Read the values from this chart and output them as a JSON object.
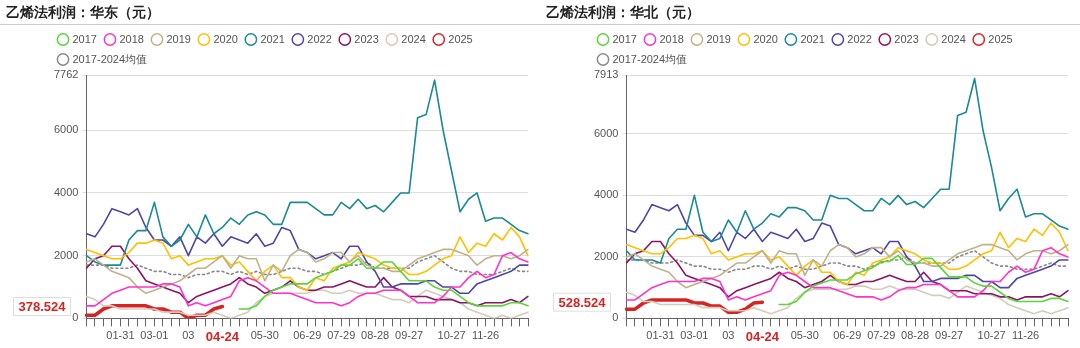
{
  "chart_data": [
    {
      "type": "line",
      "title": "乙烯法利润：华东（元）",
      "categories": [
        null,
        null,
        null,
        null,
        "01-31",
        null,
        null,
        null,
        "03-01",
        null,
        null,
        null,
        "03",
        null,
        null,
        null,
        "04-24",
        null,
        null,
        null,
        null,
        "05-30",
        null,
        null,
        null,
        null,
        "06-29",
        null,
        null,
        null,
        "07-29",
        null,
        null,
        null,
        "08-28",
        null,
        null,
        null,
        "09-27",
        null,
        null,
        null,
        null,
        "10-27",
        null,
        null,
        null,
        "11-26",
        null,
        null,
        null,
        null,
        null
      ],
      "ylim": [
        0,
        7762
      ],
      "yticks": [
        0,
        2000,
        4000,
        6000,
        7762
      ],
      "grid": "y",
      "legend": "top left",
      "marker": "none",
      "line_style": "solid",
      "annotations": [
        "378.524"
      ],
      "series": [
        {
          "name": "2017",
          "color": "#5ad53a",
          "values": [
            null,
            null,
            null,
            null,
            null,
            null,
            null,
            null,
            null,
            null,
            null,
            null,
            null,
            null,
            null,
            null,
            null,
            null,
            300,
            300,
            400,
            700,
            900,
            1000,
            1100,
            1100,
            1100,
            1300,
            1400,
            1500,
            1700,
            1700,
            1900,
            1600,
            1600,
            1800,
            1800,
            1500,
            1200,
            1200,
            1200,
            1000,
            900,
            900,
            700,
            500,
            400,
            400,
            400,
            400,
            500,
            500,
            400
          ]
        },
        {
          "name": "2018",
          "color": "#ff33cc",
          "values": [
            400,
            400,
            600,
            800,
            900,
            1000,
            1000,
            1000,
            1000,
            1100,
            1100,
            1000,
            400,
            500,
            400,
            500,
            600,
            700,
            1200,
            1300,
            1200,
            1000,
            800,
            800,
            800,
            700,
            600,
            500,
            500,
            500,
            400,
            500,
            700,
            800,
            800,
            900,
            900,
            900,
            700,
            500,
            500,
            500,
            700,
            1000,
            1000,
            1300,
            1500,
            1300,
            1400,
            2000,
            2100,
            1900,
            1800
          ]
        },
        {
          "name": "2019",
          "color": "#bfb28a",
          "values": [
            1800,
            1900,
            1700,
            1500,
            1400,
            1300,
            1000,
            800,
            900,
            1000,
            1100,
            1200,
            1400,
            1600,
            1600,
            1800,
            2000,
            1600,
            2000,
            1900,
            1900,
            1200,
            1700,
            1500,
            2000,
            2200,
            2100,
            1800,
            1900,
            2100,
            2100,
            1800,
            2000,
            1700,
            1600,
            1600,
            1500,
            1500,
            1700,
            1900,
            2000,
            2100,
            2200,
            2200,
            2100,
            2000,
            1700,
            1900,
            2000,
            2000,
            1900,
            2000,
            2200
          ]
        },
        {
          "name": "2020",
          "color": "#ffc000",
          "values": [
            2200,
            2100,
            2000,
            1900,
            1900,
            2100,
            2400,
            2400,
            2500,
            2400,
            1900,
            2000,
            1700,
            1800,
            1900,
            1900,
            2000,
            1700,
            1800,
            1500,
            1200,
            1500,
            1700,
            1300,
            1300,
            1000,
            900,
            1300,
            1200,
            1600,
            1700,
            1800,
            2100,
            2000,
            1900,
            1700,
            1600,
            1600,
            1400,
            1400,
            1500,
            1700,
            1900,
            2000,
            2600,
            2100,
            2400,
            2300,
            2700,
            2500,
            2900,
            2600,
            2000
          ]
        },
        {
          "name": "2021",
          "color": "#1a8a94",
          "values": [
            2000,
            1800,
            1700,
            1700,
            1700,
            2500,
            2800,
            2800,
            3700,
            2600,
            2300,
            2500,
            3000,
            2600,
            3300,
            2700,
            2900,
            3200,
            3000,
            3300,
            3400,
            3300,
            3000,
            3000,
            3700,
            3700,
            3700,
            3500,
            3300,
            3300,
            3700,
            3500,
            3800,
            3500,
            3600,
            3400,
            3700,
            4000,
            4000,
            6400,
            6500,
            7600,
            6000,
            4700,
            3400,
            3800,
            4000,
            3100,
            3200,
            3200,
            3000,
            2800,
            2700
          ]
        },
        {
          "name": "2022",
          "color": "#5046a8",
          "values": [
            2700,
            2600,
            3000,
            3500,
            3400,
            3300,
            3500,
            2900,
            2500,
            2500,
            2300,
            2600,
            2000,
            2600,
            2400,
            2700,
            2300,
            2600,
            2500,
            2400,
            2700,
            2300,
            2400,
            2900,
            2800,
            2200,
            2100,
            1900,
            2000,
            2100,
            1900,
            2300,
            2300,
            1800,
            1500,
            1000,
            1000,
            1100,
            1100,
            1100,
            1200,
            1200,
            1000,
            1000,
            800,
            800,
            1100,
            1200,
            1300,
            1400,
            1500,
            1700,
            1700
          ]
        },
        {
          "name": "2023",
          "color": "#8c1465",
          "values": [
            1600,
            1900,
            2000,
            2300,
            2300,
            1900,
            1600,
            1200,
            1100,
            1000,
            900,
            800,
            500,
            700,
            800,
            900,
            1000,
            1100,
            1300,
            1100,
            1000,
            800,
            900,
            1000,
            1200,
            1000,
            900,
            900,
            1000,
            1000,
            1100,
            1200,
            1100,
            1000,
            1000,
            1300,
            1000,
            900,
            700,
            700,
            700,
            600,
            600,
            600,
            500,
            500,
            400,
            500,
            500,
            500,
            600,
            500,
            700
          ]
        },
        {
          "name": "2024",
          "color": "#d5cbbb",
          "values": [
            700,
            600,
            400,
            400,
            300,
            300,
            300,
            300,
            300,
            200,
            200,
            200,
            100,
            100,
            100,
            200,
            100,
            0,
            100,
            200,
            500,
            700,
            800,
            800,
            800,
            800,
            800,
            900,
            900,
            800,
            800,
            900,
            800,
            800,
            800,
            700,
            600,
            600,
            500,
            700,
            900,
            800,
            700,
            600,
            500,
            300,
            200,
            100,
            0,
            100,
            0,
            100,
            200
          ]
        },
        {
          "name": "2025",
          "color": "#d62424",
          "values": [
            100,
            100,
            300,
            400,
            400,
            400,
            400,
            400,
            300,
            300,
            200,
            200,
            0,
            100,
            100,
            300,
            378.524,
            null,
            null,
            null,
            null,
            null,
            null,
            null,
            null,
            null,
            null,
            null,
            null,
            null,
            null,
            null,
            null,
            null,
            null,
            null,
            null,
            null,
            null,
            null,
            null,
            null,
            null,
            null,
            null,
            null,
            null,
            null,
            null,
            null,
            null,
            null,
            null
          ]
        },
        {
          "name": "2017-2024均值",
          "color": "#888888",
          "line_style": "dotted",
          "values": [
            1700,
            1700,
            1700,
            1600,
            1600,
            1600,
            1700,
            1600,
            1500,
            1500,
            1400,
            1400,
            1300,
            1400,
            1400,
            1500,
            1500,
            1400,
            1500,
            1400,
            1500,
            1400,
            1400,
            1500,
            1600,
            1600,
            1500,
            1500,
            1400,
            1500,
            1600,
            1700,
            1700,
            1800,
            1600,
            1600,
            1600,
            1600,
            1600,
            1800,
            1900,
            2000,
            1800,
            1600,
            1500,
            1500,
            1400,
            1400,
            1400,
            1500,
            1600,
            1500,
            1500
          ]
        }
      ]
    },
    {
      "type": "line",
      "title": "乙烯法利润：华北（元）",
      "categories": [
        null,
        null,
        null,
        null,
        "01-31",
        null,
        null,
        null,
        "03-01",
        null,
        null,
        null,
        "03",
        null,
        null,
        null,
        "04-24",
        null,
        null,
        null,
        null,
        "05-30",
        null,
        null,
        null,
        null,
        "06-29",
        null,
        null,
        null,
        "07-29",
        null,
        null,
        null,
        "08-28",
        null,
        null,
        null,
        "09-27",
        null,
        null,
        null,
        null,
        "10-27",
        null,
        null,
        null,
        "11-26",
        null,
        null,
        null,
        null,
        null
      ],
      "ylim": [
        0,
        7913
      ],
      "yticks": [
        0,
        2000,
        4000,
        6000,
        7913
      ],
      "grid": "y",
      "legend": "top left",
      "marker": "none",
      "line_style": "solid",
      "annotations": [
        "528.524"
      ],
      "series": [
        {
          "name": "2017",
          "color": "#5ad53a",
          "values": [
            null,
            null,
            null,
            null,
            null,
            null,
            null,
            null,
            null,
            null,
            null,
            null,
            null,
            null,
            null,
            null,
            null,
            null,
            450,
            450,
            550,
            850,
            1050,
            1150,
            1250,
            1250,
            1250,
            1450,
            1550,
            1650,
            1850,
            1850,
            2050,
            1750,
            1750,
            1950,
            1950,
            1650,
            1350,
            1350,
            1350,
            1150,
            1050,
            1050,
            850,
            650,
            550,
            550,
            550,
            550,
            650,
            650,
            550
          ]
        },
        {
          "name": "2018",
          "color": "#ff33cc",
          "values": [
            600,
            600,
            800,
            1000,
            1100,
            1200,
            1200,
            1200,
            1200,
            1300,
            1300,
            1200,
            600,
            700,
            600,
            700,
            800,
            900,
            1400,
            1500,
            1400,
            1200,
            1000,
            1000,
            1000,
            900,
            800,
            700,
            700,
            700,
            600,
            700,
            900,
            1000,
            1000,
            1100,
            1100,
            1100,
            900,
            700,
            700,
            700,
            900,
            1200,
            1200,
            1500,
            1700,
            1500,
            1600,
            2200,
            2300,
            2100,
            2000
          ]
        },
        {
          "name": "2019",
          "color": "#bfb28a",
          "values": [
            2000,
            2100,
            1900,
            1700,
            1600,
            1500,
            1200,
            1000,
            1100,
            1200,
            1300,
            1400,
            1600,
            1800,
            1800,
            2000,
            2200,
            1800,
            2200,
            2100,
            2100,
            1400,
            1900,
            1700,
            2200,
            2400,
            2300,
            2000,
            2100,
            2300,
            2300,
            2000,
            2200,
            1900,
            1800,
            1800,
            1700,
            1700,
            1900,
            2100,
            2200,
            2300,
            2400,
            2400,
            2300,
            2200,
            1900,
            2100,
            2200,
            2200,
            2100,
            2200,
            2400
          ]
        },
        {
          "name": "2020",
          "color": "#ffc000",
          "values": [
            2400,
            2300,
            2200,
            2100,
            2100,
            2300,
            2600,
            2600,
            2700,
            2600,
            2100,
            2200,
            1900,
            2000,
            2100,
            2100,
            2200,
            1900,
            2000,
            1700,
            1400,
            1700,
            1900,
            1500,
            1500,
            1200,
            1100,
            1500,
            1400,
            1800,
            1900,
            2000,
            2300,
            2200,
            2100,
            1900,
            1800,
            1800,
            1600,
            1600,
            1700,
            1900,
            2100,
            2200,
            2800,
            2300,
            2600,
            2500,
            2900,
            2700,
            3100,
            2800,
            2200
          ]
        },
        {
          "name": "2021",
          "color": "#1a8a94",
          "values": [
            2200,
            1900,
            1900,
            1900,
            1800,
            2600,
            2900,
            2900,
            4000,
            2800,
            2500,
            2600,
            3200,
            2800,
            3500,
            2900,
            3100,
            3400,
            3300,
            3600,
            3600,
            3500,
            3200,
            3200,
            4000,
            3900,
            3900,
            3700,
            3500,
            3500,
            3900,
            3700,
            4000,
            3700,
            3800,
            3600,
            3900,
            4200,
            4200,
            6600,
            6700,
            7800,
            6100,
            4900,
            3500,
            3900,
            4200,
            3300,
            3400,
            3400,
            3200,
            3000,
            2900
          ]
        },
        {
          "name": "2022",
          "color": "#5046a8",
          "values": [
            2900,
            2800,
            3200,
            3700,
            3600,
            3500,
            3700,
            3100,
            2700,
            2700,
            2500,
            2800,
            2200,
            2800,
            2600,
            2900,
            2500,
            2800,
            2700,
            2600,
            2900,
            2500,
            2600,
            3100,
            3000,
            2400,
            2300,
            2100,
            2200,
            2300,
            2100,
            2500,
            2500,
            2000,
            1700,
            1200,
            1200,
            1300,
            1300,
            1300,
            1400,
            1400,
            1200,
            1200,
            1000,
            1000,
            1300,
            1400,
            1500,
            1600,
            1700,
            1900,
            1900
          ]
        },
        {
          "name": "2023",
          "color": "#8c1465",
          "values": [
            1800,
            2100,
            2200,
            2500,
            2500,
            2100,
            1800,
            1400,
            1300,
            1200,
            1100,
            1000,
            700,
            900,
            1000,
            1100,
            1200,
            1300,
            1500,
            1300,
            1200,
            1000,
            1100,
            1200,
            1400,
            1200,
            1100,
            1100,
            1200,
            1200,
            1300,
            1400,
            1300,
            1200,
            1200,
            1500,
            1200,
            1100,
            900,
            900,
            900,
            800,
            800,
            800,
            700,
            700,
            600,
            700,
            700,
            700,
            800,
            700,
            900
          ]
        },
        {
          "name": "2024",
          "color": "#d5cbbb",
          "values": [
            850,
            750,
            550,
            550,
            450,
            450,
            450,
            450,
            450,
            350,
            350,
            350,
            250,
            250,
            250,
            350,
            250,
            150,
            250,
            350,
            650,
            850,
            950,
            950,
            950,
            950,
            950,
            1050,
            1050,
            950,
            950,
            1050,
            950,
            950,
            950,
            850,
            750,
            750,
            650,
            850,
            1050,
            950,
            850,
            750,
            650,
            450,
            350,
            250,
            150,
            250,
            150,
            250,
            350
          ]
        },
        {
          "name": "2025",
          "color": "#d62424",
          "values": [
            300,
            300,
            500,
            600,
            600,
            600,
            600,
            600,
            500,
            500,
            400,
            400,
            200,
            200,
            300,
            500,
            528.524,
            null,
            null,
            null,
            null,
            null,
            null,
            null,
            null,
            null,
            null,
            null,
            null,
            null,
            null,
            null,
            null,
            null,
            null,
            null,
            null,
            null,
            null,
            null,
            null,
            null,
            null,
            null,
            null,
            null,
            null,
            null,
            null,
            null,
            null,
            null,
            null
          ]
        },
        {
          "name": "2017-2024均值",
          "color": "#888888",
          "line_style": "dotted",
          "values": [
            1900,
            1900,
            1900,
            1800,
            1800,
            1800,
            1900,
            1800,
            1700,
            1700,
            1600,
            1600,
            1500,
            1600,
            1600,
            1700,
            1700,
            1600,
            1700,
            1600,
            1700,
            1600,
            1600,
            1700,
            1800,
            1800,
            1700,
            1700,
            1600,
            1700,
            1800,
            1900,
            1900,
            2000,
            1800,
            1800,
            1800,
            1800,
            1800,
            2000,
            2100,
            2200,
            2000,
            1800,
            1700,
            1700,
            1600,
            1600,
            1600,
            1700,
            1800,
            1700,
            1700
          ]
        }
      ]
    }
  ]
}
